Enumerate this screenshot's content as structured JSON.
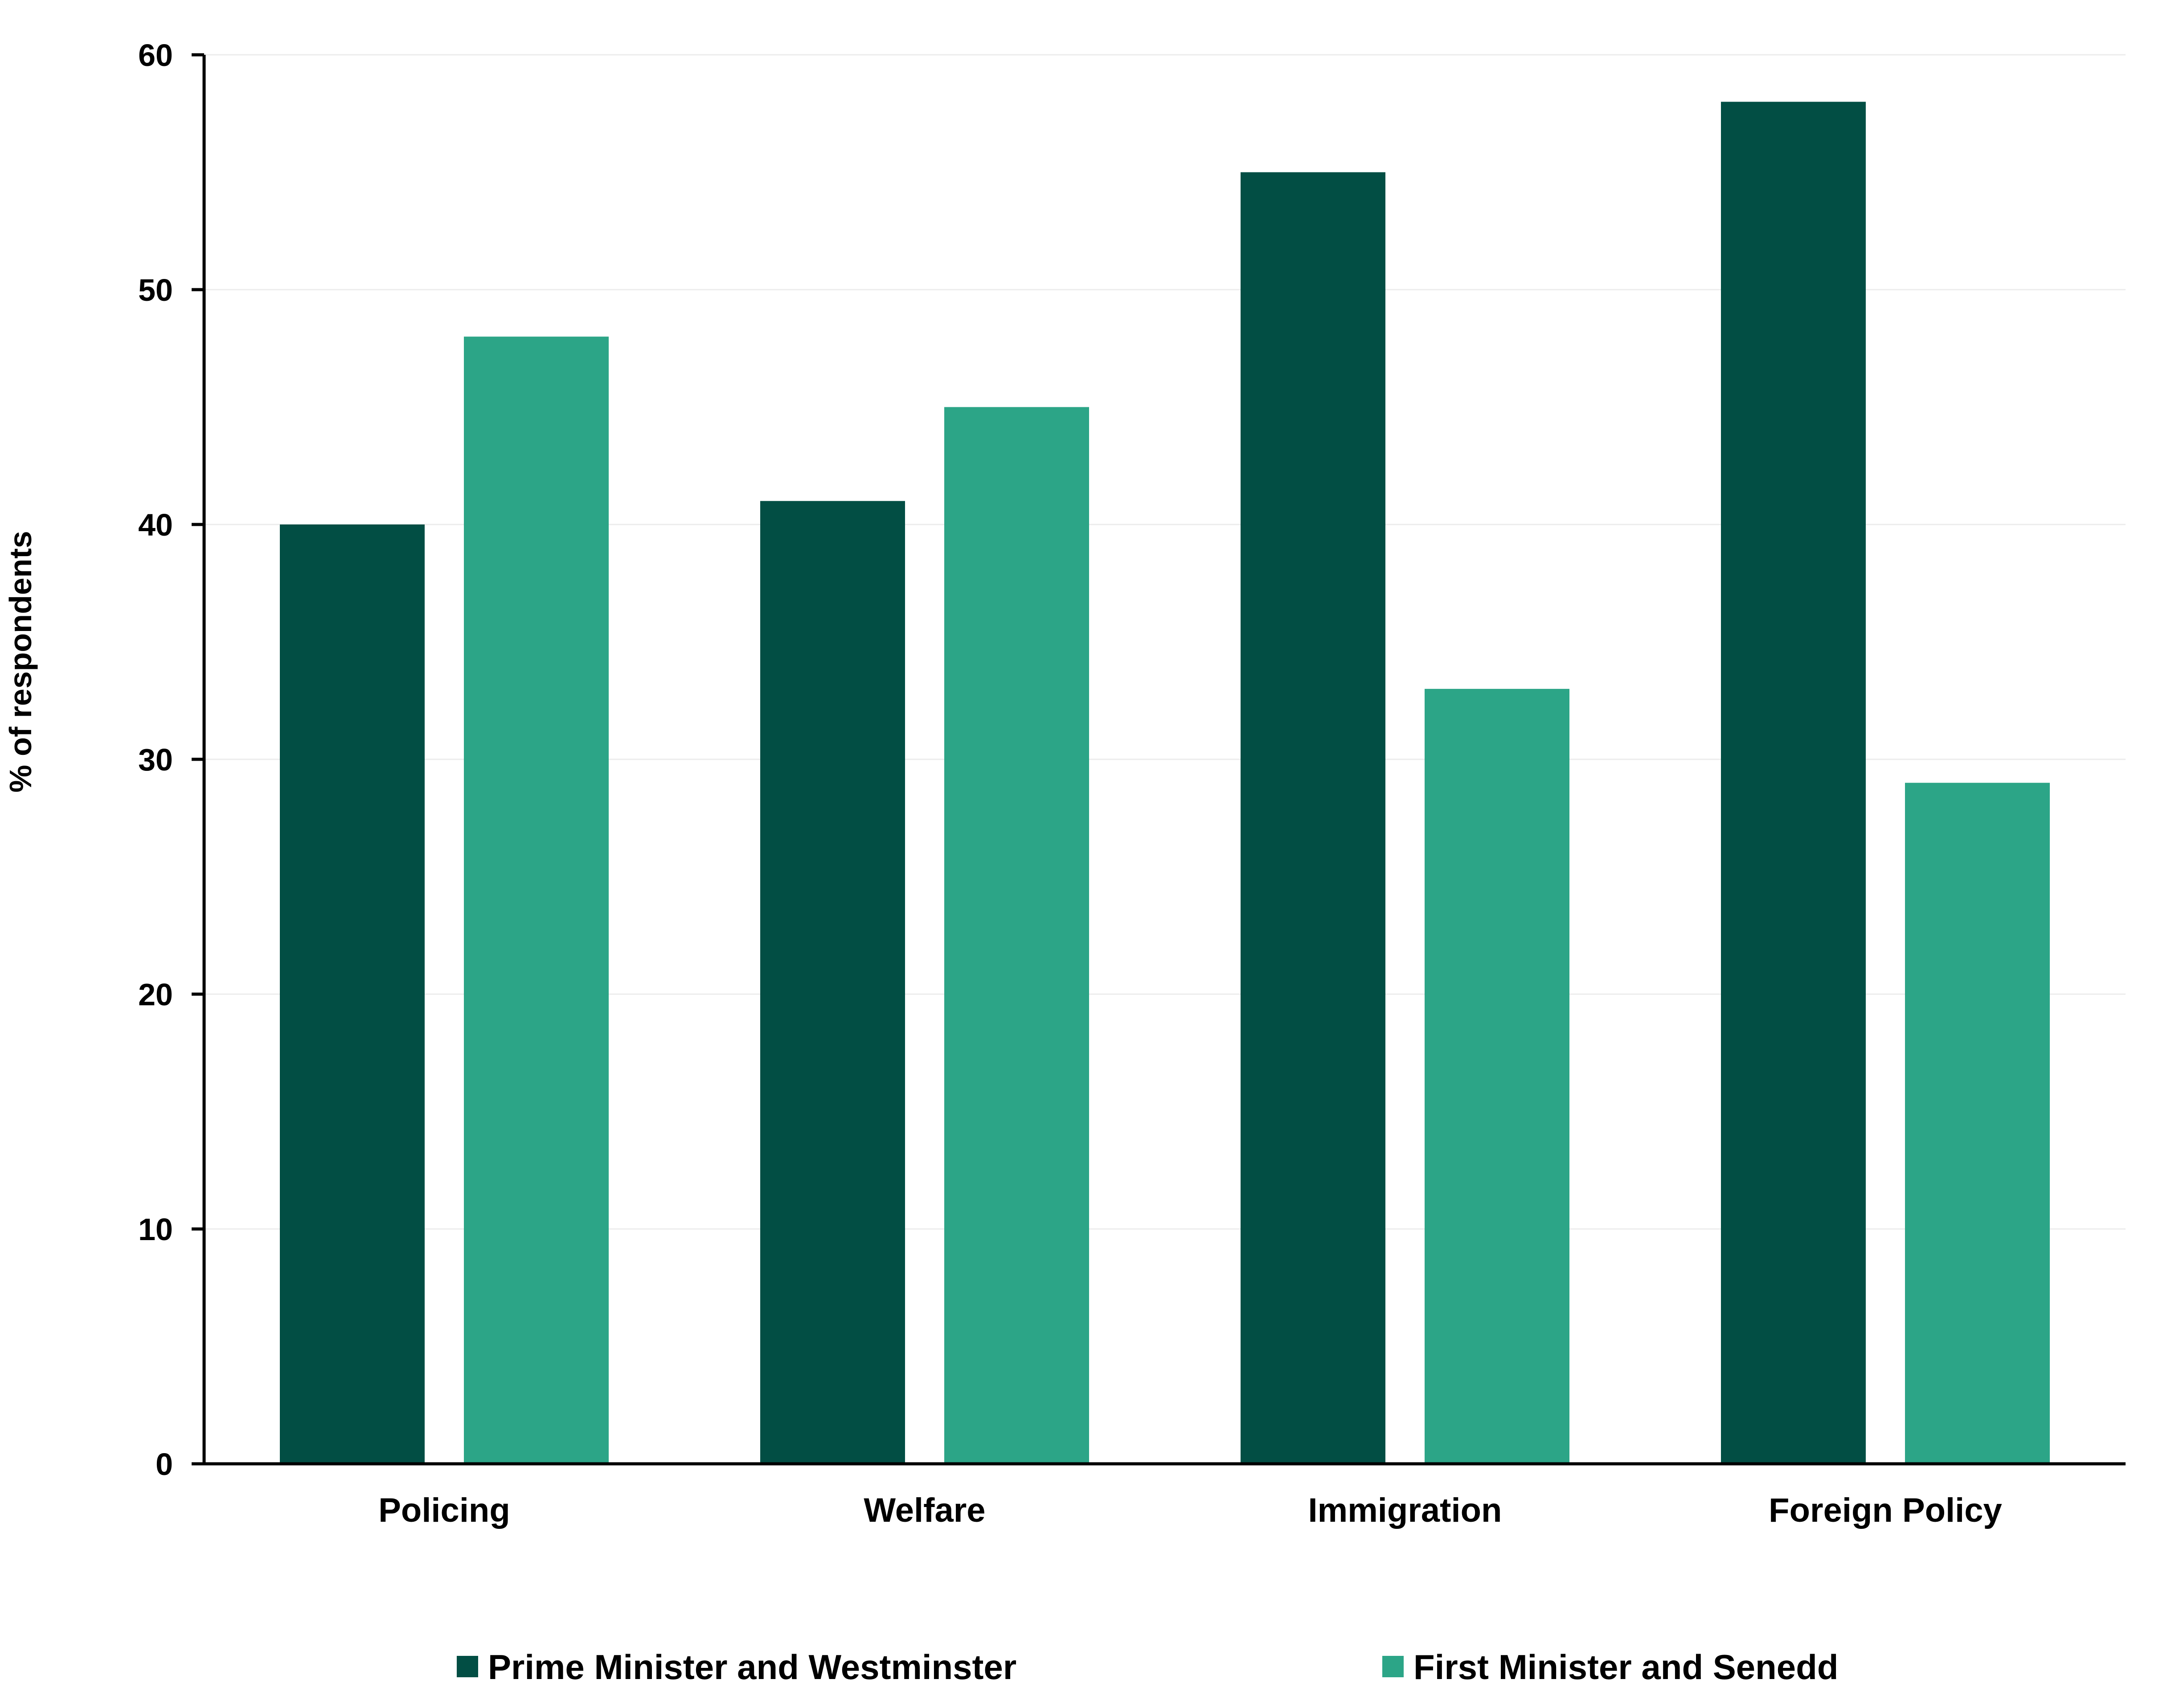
{
  "chart_data": {
    "type": "bar",
    "categories": [
      "Policing",
      "Welfare",
      "Immigration",
      "Foreign Policy"
    ],
    "series": [
      {
        "name": "Prime Minister and Westminster",
        "color": "#024e44",
        "values": [
          40,
          41,
          55,
          58
        ]
      },
      {
        "name": "First Minister and Senedd",
        "color": "#2ca587",
        "values": [
          48,
          45,
          33,
          29
        ]
      }
    ],
    "title": "",
    "xlabel": "",
    "ylabel": "% of respondents",
    "ylim": [
      0,
      60
    ],
    "yticks": [
      0,
      10,
      20,
      30,
      40,
      50,
      60
    ],
    "grid": true,
    "legend_position": "bottom"
  }
}
